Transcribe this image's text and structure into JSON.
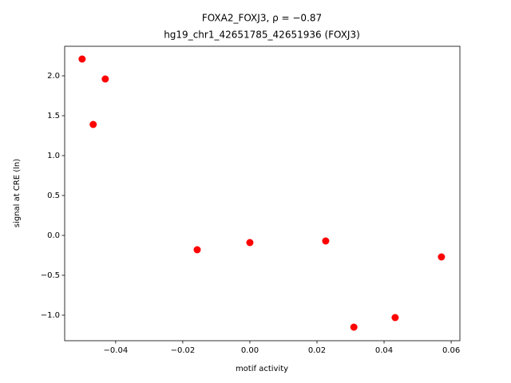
{
  "chart_data": {
    "type": "scatter",
    "title": "FOXA2_FOXJ3, ρ = −0.87",
    "subtitle": "hg19_chr1_42651785_42651936 (FOXJ3)",
    "x_label": "motif activity",
    "y_label": "signal at CRE (ln)",
    "color": "#ff0000",
    "x": [
      -0.05,
      -0.0431,
      -0.0467,
      -0.0157,
      0.0,
      0.0226,
      0.031,
      0.0433,
      0.0571
    ],
    "y": [
      2.21,
      1.96,
      1.39,
      -0.18,
      -0.09,
      -0.07,
      -1.15,
      -1.03,
      -0.27
    ],
    "xlim": [
      -0.0552,
      0.0626
    ],
    "ylim": [
      -1.32,
      2.37
    ],
    "xticks": [
      {
        "value": -0.04,
        "label": "−0.04"
      },
      {
        "value": -0.02,
        "label": "−0.02"
      },
      {
        "value": 0,
        "label": "0.00"
      },
      {
        "value": 0.02,
        "label": "0.02"
      },
      {
        "value": 0.04,
        "label": "0.04"
      },
      {
        "value": 0.06,
        "label": "0.06"
      }
    ],
    "yticks": [
      {
        "value": -1,
        "label": "−1.0"
      },
      {
        "value": -0.5,
        "label": "−0.5"
      },
      {
        "value": 0,
        "label": "0.0"
      },
      {
        "value": 0.5,
        "label": "0.5"
      },
      {
        "value": 1,
        "label": "1.0"
      },
      {
        "value": 1.5,
        "label": "1.5"
      },
      {
        "value": 2,
        "label": "2.0"
      }
    ]
  }
}
